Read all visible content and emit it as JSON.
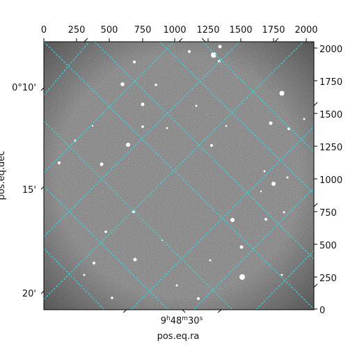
{
  "plot": {
    "x_label": "pos.eq.ra",
    "y_label": "pos.eq.dec",
    "top_ticks": [
      "0",
      "250",
      "500",
      "750",
      "1000",
      "1250",
      "1500",
      "1750",
      "2000"
    ],
    "right_ticks": [
      "2000",
      "1750",
      "1500",
      "1250",
      "1000",
      "750",
      "500",
      "250",
      "0"
    ],
    "left_ticks": [
      "0°10'",
      "15'",
      "20'"
    ],
    "bottom_tick": "9h48m30s",
    "bottom_tick_parts": {
      "h": "9",
      "h_unit": "h",
      "m": "48",
      "m_unit": "m",
      "s": "30",
      "s_unit": "s"
    },
    "grid_color": "#2fd6d6",
    "background_color": "#ffffff",
    "image_description_colors": {
      "sky": "#7a7a7a",
      "star": "#ffffff"
    }
  }
}
